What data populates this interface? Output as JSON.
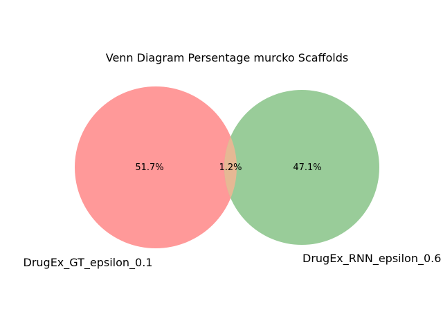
{
  "title": "Venn Diagram Persentage murcko Scaffolds",
  "sets": [
    {
      "name": "DrugEx_GT_epsilon_0.1",
      "color": "#ff9999"
    },
    {
      "name": "DrugEx_RNN_epsilon_0.6",
      "color": "#99cc99"
    }
  ],
  "regions": {
    "only_a": "51.7%",
    "intersection": "1.2%",
    "only_b": "47.1%"
  },
  "overlap_color": "#e6b894"
}
